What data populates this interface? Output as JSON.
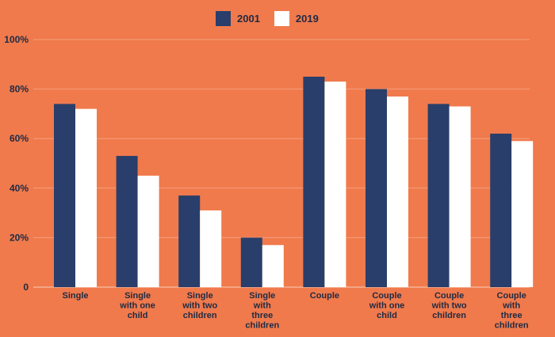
{
  "colors": {
    "background": "#f07a4c",
    "series_2001": "#293e6a",
    "series_2019": "#ffffff",
    "text": "#1f2a44"
  },
  "chart_data": {
    "type": "bar",
    "categories": [
      [
        "Single"
      ],
      [
        "Single",
        "with one",
        "child"
      ],
      [
        "Single",
        "with two",
        "children"
      ],
      [
        "Single",
        "with",
        "three",
        "children"
      ],
      [
        "Couple"
      ],
      [
        "Couple",
        "with one",
        "child"
      ],
      [
        "Couple",
        "with two",
        "children"
      ],
      [
        "Couple",
        "with",
        "three",
        "children"
      ]
    ],
    "series": [
      {
        "name": "2001",
        "color": "#293e6a",
        "values": [
          74,
          53,
          37,
          20,
          85,
          80,
          74,
          62
        ]
      },
      {
        "name": "2019",
        "color": "#ffffff",
        "values": [
          72,
          45,
          31,
          17,
          83,
          77,
          73,
          59
        ]
      }
    ],
    "ylim": [
      0,
      100
    ],
    "yticks": [
      0,
      20,
      40,
      60,
      80,
      100
    ],
    "ytick_labels": [
      "0",
      "20%",
      "40%",
      "60%",
      "80%",
      "100%"
    ],
    "grid": true,
    "legend_position": "top-center"
  }
}
